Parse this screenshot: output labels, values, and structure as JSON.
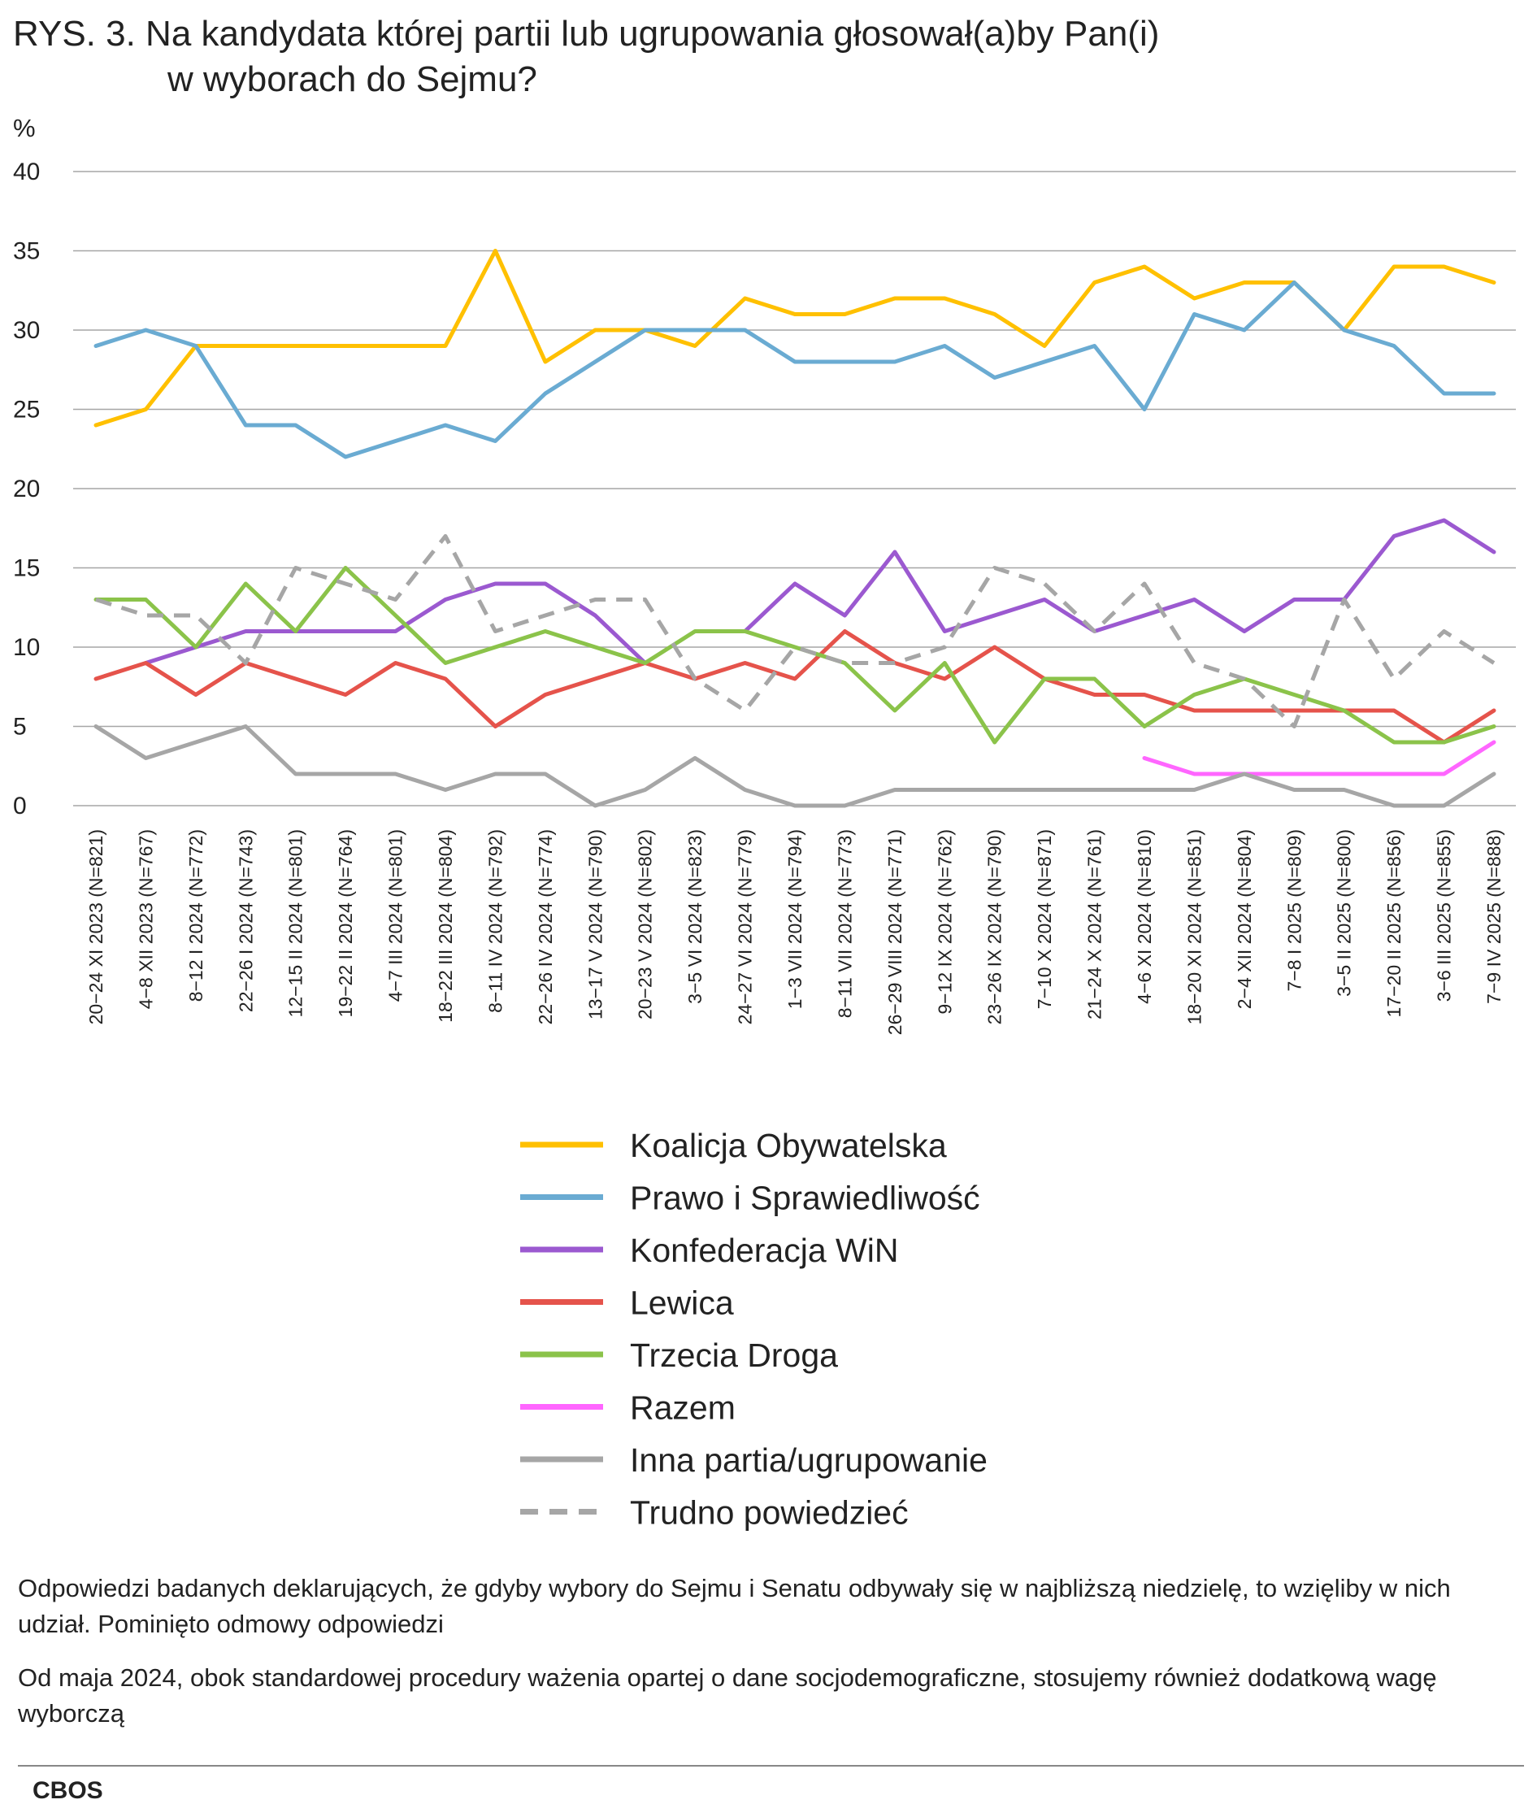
{
  "title_line1": "RYS. 3. Na kandydata której partii lub ugrupowania głosował(a)by Pan(i)",
  "title_line2": "w wyborach do Sejmu?",
  "note1": "Odpowiedzi badanych deklarujących, że gdyby wybory do Sejmu i Senatu odbywały się w najbliższą niedzielę, to wzięliby w nich udział. Pominięto odmowy odpowiedzi",
  "note2": "Od maja 2024, obok standardowej procedury ważenia opartej o dane socjodemograficzne, stosujemy również dodatkową wagę wyborczą",
  "source": "CBOS",
  "chart_data": {
    "type": "line",
    "ylabel": "%",
    "ylim": [
      0,
      40
    ],
    "yticks": [
      0,
      5,
      10,
      15,
      20,
      25,
      30,
      35,
      40
    ],
    "grid": true,
    "legend_position": "bottom",
    "categories": [
      "20−24 XI 2023 (N=821)",
      "4−8 XII 2023 (N=767)",
      "8−12 I 2024 (N=772)",
      "22−26 I 2024 (N=743)",
      "12−15 II 2024 (N=801)",
      "19−22 II 2024 (N=764)",
      "4−7 III 2024 (N=801)",
      "18−22 III 2024 (N=804)",
      "8−11 IV 2024 (N=792)",
      "22−26 IV 2024 (N=774)",
      "13−17 V 2024 (N=790)",
      "20−23 V 2024 (N=802)",
      "3−5 VI 2024 (N=823)",
      "24−27 VI 2024 (N=779)",
      "1−3 VII 2024 (N=794)",
      "8−11 VII 2024 (N=773)",
      "26−29 VIII 2024 (N=771)",
      "9−12 IX 2024 (N=762)",
      "23−26 IX 2024 (N=790)",
      "7−10 X 2024 (N=871)",
      "21−24 X 2024 (N=761)",
      "4−6 XI 2024 (N=810)",
      "18−20 XI 2024 (N=851)",
      "2−4 XII 2024 (N=804)",
      "7−8 I 2025 (N=809)",
      "3−5 II 2025 (N=800)",
      "17−20 II 2025 (N=856)",
      "3−6 III 2025 (N=855)",
      "7−9 IV 2025 (N=888)"
    ],
    "series": [
      {
        "name": "Koalicja Obywatelska",
        "color": "#FFC000",
        "dashed": false,
        "values": [
          24,
          25,
          29,
          29,
          29,
          29,
          29,
          29,
          35,
          28,
          30,
          30,
          29,
          32,
          31,
          31,
          32,
          32,
          31,
          29,
          33,
          34,
          32,
          33,
          33,
          30,
          34,
          34,
          33
        ]
      },
      {
        "name": "Prawo i Sprawiedliwość",
        "color": "#6AABD2",
        "dashed": false,
        "values": [
          29,
          30,
          29,
          24,
          24,
          22,
          23,
          24,
          23,
          26,
          28,
          30,
          30,
          30,
          28,
          28,
          28,
          29,
          27,
          28,
          29,
          25,
          31,
          30,
          33,
          30,
          29,
          26,
          26
        ]
      },
      {
        "name": "Konfederacja WiN",
        "color": "#9B59D0",
        "dashed": false,
        "values": [
          null,
          9,
          10,
          11,
          11,
          11,
          11,
          13,
          14,
          14,
          12,
          9,
          null,
          11,
          14,
          12,
          16,
          11,
          12,
          13,
          11,
          12,
          13,
          11,
          13,
          13,
          17,
          18,
          16
        ]
      },
      {
        "name": "Lewica",
        "color": "#E5534B",
        "dashed": false,
        "values": [
          8,
          9,
          7,
          9,
          8,
          7,
          9,
          8,
          5,
          7,
          8,
          9,
          8,
          9,
          8,
          11,
          9,
          8,
          10,
          8,
          7,
          7,
          6,
          6,
          6,
          6,
          6,
          4,
          6
        ]
      },
      {
        "name": "Trzecia Droga",
        "color": "#8BC34A",
        "dashed": false,
        "values": [
          13,
          13,
          10,
          14,
          11,
          15,
          12,
          9,
          10,
          11,
          10,
          9,
          11,
          11,
          10,
          9,
          6,
          9,
          4,
          8,
          8,
          5,
          7,
          8,
          7,
          6,
          4,
          4,
          5
        ]
      },
      {
        "name": "Razem",
        "color": "#FF66FF",
        "dashed": false,
        "values": [
          null,
          null,
          null,
          null,
          null,
          null,
          null,
          null,
          null,
          null,
          null,
          null,
          null,
          null,
          null,
          null,
          null,
          null,
          null,
          null,
          null,
          3,
          2,
          2,
          2,
          2,
          2,
          2,
          4
        ]
      },
      {
        "name": "Inna partia/ugrupowanie",
        "color": "#A6A6A6",
        "dashed": false,
        "values": [
          5,
          3,
          4,
          5,
          2,
          2,
          2,
          1,
          2,
          2,
          0,
          1,
          3,
          1,
          0,
          0,
          1,
          1,
          1,
          1,
          1,
          1,
          1,
          2,
          1,
          1,
          0,
          0,
          2
        ]
      },
      {
        "name": "Trudno powiedzieć",
        "color": "#A6A6A6",
        "dashed": true,
        "values": [
          13,
          12,
          12,
          9,
          15,
          14,
          13,
          17,
          11,
          12,
          13,
          13,
          8,
          6,
          10,
          9,
          9,
          10,
          15,
          14,
          11,
          14,
          9,
          8,
          5,
          13,
          8,
          11,
          9
        ]
      }
    ]
  }
}
